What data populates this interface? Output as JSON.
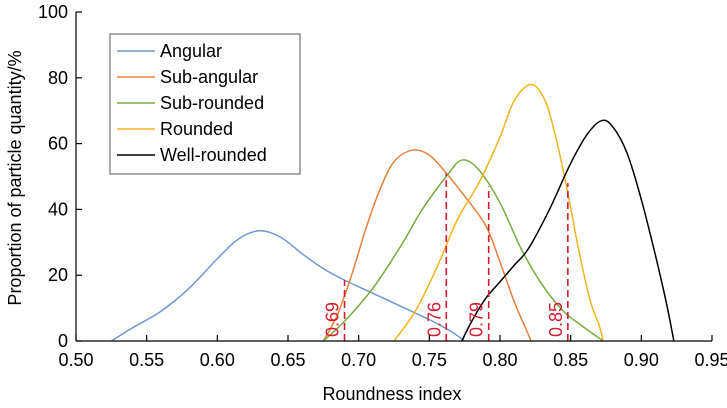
{
  "chart_data": {
    "type": "line",
    "title": "",
    "xlabel": "Roundness index",
    "ylabel": "Proportion of particle quantity/%",
    "xlim": [
      0.5,
      0.95
    ],
    "ylim": [
      0,
      100
    ],
    "x_ticks": [
      0.5,
      0.55,
      0.6,
      0.65,
      0.7,
      0.75,
      0.8,
      0.85,
      0.9,
      0.95
    ],
    "x_tick_labels": [
      "0.50",
      "0.55",
      "0.60",
      "0.65",
      "0.70",
      "0.75",
      "0.80",
      "0.85",
      "0.90",
      "0.95"
    ],
    "y_ticks": [
      0,
      20,
      40,
      60,
      80,
      100
    ],
    "y_tick_labels": [
      "0",
      "20",
      "40",
      "60",
      "80",
      "100"
    ],
    "grid": false,
    "legend_position": "top-left",
    "series": [
      {
        "name": "Angular",
        "color": "#6f97d4",
        "points": [
          [
            0.525,
            0
          ],
          [
            0.54,
            4
          ],
          [
            0.56,
            9
          ],
          [
            0.58,
            16
          ],
          [
            0.6,
            25
          ],
          [
            0.615,
            31
          ],
          [
            0.63,
            33.5
          ],
          [
            0.645,
            31.5
          ],
          [
            0.66,
            26.5
          ],
          [
            0.675,
            22
          ],
          [
            0.69,
            18.5
          ],
          [
            0.71,
            14.5
          ],
          [
            0.73,
            10.5
          ],
          [
            0.75,
            6.5
          ],
          [
            0.765,
            3
          ],
          [
            0.775,
            0
          ]
        ]
      },
      {
        "name": "Sub-angular",
        "color": "#e8803c",
        "points": [
          [
            0.675,
            0
          ],
          [
            0.685,
            8
          ],
          [
            0.695,
            20
          ],
          [
            0.705,
            34
          ],
          [
            0.715,
            46
          ],
          [
            0.725,
            54.5
          ],
          [
            0.738,
            58
          ],
          [
            0.75,
            56.5
          ],
          [
            0.762,
            51
          ],
          [
            0.775,
            44
          ],
          [
            0.79,
            35
          ],
          [
            0.8,
            24
          ],
          [
            0.81,
            12
          ],
          [
            0.818,
            4
          ],
          [
            0.822,
            0
          ]
        ]
      },
      {
        "name": "Sub-rounded",
        "color": "#77ac40",
        "points": [
          [
            0.675,
            0
          ],
          [
            0.69,
            6
          ],
          [
            0.71,
            16
          ],
          [
            0.73,
            29
          ],
          [
            0.745,
            40
          ],
          [
            0.762,
            50
          ],
          [
            0.773,
            55
          ],
          [
            0.785,
            52
          ],
          [
            0.8,
            42
          ],
          [
            0.815,
            28
          ],
          [
            0.83,
            17
          ],
          [
            0.845,
            9
          ],
          [
            0.86,
            4
          ],
          [
            0.873,
            0
          ]
        ]
      },
      {
        "name": "Rounded",
        "color": "#efb520",
        "points": [
          [
            0.725,
            0
          ],
          [
            0.74,
            9
          ],
          [
            0.755,
            22
          ],
          [
            0.77,
            37
          ],
          [
            0.785,
            48
          ],
          [
            0.8,
            62
          ],
          [
            0.81,
            73
          ],
          [
            0.822,
            78
          ],
          [
            0.832,
            73
          ],
          [
            0.84,
            61
          ],
          [
            0.848,
            45
          ],
          [
            0.856,
            27
          ],
          [
            0.864,
            12
          ],
          [
            0.87,
            5
          ],
          [
            0.873,
            0
          ]
        ]
      },
      {
        "name": "Well-rounded",
        "color": "#000000",
        "points": [
          [
            0.773,
            0
          ],
          [
            0.78,
            6
          ],
          [
            0.79,
            13
          ],
          [
            0.8,
            18
          ],
          [
            0.81,
            23
          ],
          [
            0.82,
            28
          ],
          [
            0.835,
            40
          ],
          [
            0.85,
            54
          ],
          [
            0.862,
            63
          ],
          [
            0.872,
            67
          ],
          [
            0.88,
            65
          ],
          [
            0.89,
            57
          ],
          [
            0.9,
            43
          ],
          [
            0.91,
            26
          ],
          [
            0.918,
            11
          ],
          [
            0.923,
            0
          ]
        ]
      }
    ],
    "cutoffs": [
      {
        "x": 0.69,
        "y": 18.5,
        "label": "0.69"
      },
      {
        "x": 0.762,
        "y": 51,
        "label": "0.76"
      },
      {
        "x": 0.792,
        "y": 47,
        "label": "0.79"
      },
      {
        "x": 0.848,
        "y": 48,
        "label": "0.85"
      }
    ],
    "cutoff_color": "#d21c2c"
  }
}
